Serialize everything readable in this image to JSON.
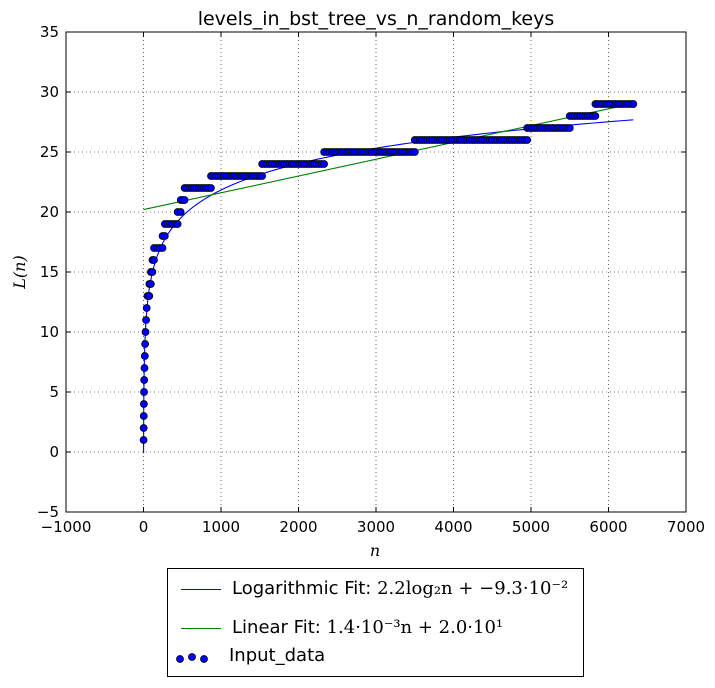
{
  "chart_data": {
    "type": "scatter",
    "title": "levels_in_bst_tree_vs_n_random_keys",
    "xlabel": "n",
    "ylabel": "L(n)",
    "xlim": [
      -1000,
      7000
    ],
    "ylim": [
      -5,
      35
    ],
    "xticks": [
      "−1000",
      "0",
      "1000",
      "2000",
      "3000",
      "4000",
      "5000",
      "6000",
      "7000"
    ],
    "yticks": [
      "−5",
      "0",
      "5",
      "10",
      "15",
      "20",
      "25",
      "30",
      "35"
    ],
    "grid": true,
    "legend_placement": "below",
    "series": [
      {
        "name": "Input_data",
        "kind": "scatter",
        "color": "#0000ff",
        "edge_color": "#000000",
        "segments": [
          {
            "y": 1,
            "x_start": 1,
            "x_end": 1
          },
          {
            "y": 2,
            "x_start": 2,
            "x_end": 2
          },
          {
            "y": 3,
            "x_start": 3,
            "x_end": 4
          },
          {
            "y": 4,
            "x_start": 5,
            "x_end": 6
          },
          {
            "y": 5,
            "x_start": 7,
            "x_end": 8
          },
          {
            "y": 6,
            "x_start": 9,
            "x_end": 12
          },
          {
            "y": 7,
            "x_start": 13,
            "x_end": 16
          },
          {
            "y": 8,
            "x_start": 17,
            "x_end": 20
          },
          {
            "y": 9,
            "x_start": 21,
            "x_end": 25
          },
          {
            "y": 10,
            "x_start": 26,
            "x_end": 32
          },
          {
            "y": 11,
            "x_start": 33,
            "x_end": 40
          },
          {
            "y": 12,
            "x_start": 41,
            "x_end": 50
          },
          {
            "y": 13,
            "x_start": 51,
            "x_end": 75
          },
          {
            "y": 14,
            "x_start": 76,
            "x_end": 95
          },
          {
            "y": 15,
            "x_start": 96,
            "x_end": 115
          },
          {
            "y": 16,
            "x_start": 116,
            "x_end": 135
          },
          {
            "y": 17,
            "x_start": 136,
            "x_end": 245
          },
          {
            "y": 18,
            "x_start": 246,
            "x_end": 275
          },
          {
            "y": 19,
            "x_start": 276,
            "x_end": 440
          },
          {
            "y": 20,
            "x_start": 441,
            "x_end": 480
          },
          {
            "y": 21,
            "x_start": 481,
            "x_end": 530
          },
          {
            "y": 22,
            "x_start": 531,
            "x_end": 870
          },
          {
            "y": 23,
            "x_start": 871,
            "x_end": 1530
          },
          {
            "y": 24,
            "x_start": 1531,
            "x_end": 2330
          },
          {
            "y": 25,
            "x_start": 2331,
            "x_end": 3500
          },
          {
            "y": 26,
            "x_start": 3501,
            "x_end": 4950
          },
          {
            "y": 27,
            "x_start": 4951,
            "x_end": 5500
          },
          {
            "y": 28,
            "x_start": 5501,
            "x_end": 5830
          },
          {
            "y": 29,
            "x_start": 5831,
            "x_end": 6320
          }
        ]
      },
      {
        "name": "Logarithmic Fit",
        "kind": "line",
        "color": "#0000ff",
        "formula_text": "2.2log₂n + −9.3·10⁻²",
        "a": 2.2,
        "b": -0.093,
        "x_range": [
          1,
          6320
        ]
      },
      {
        "name": "Linear Fit",
        "kind": "line",
        "color": "#008000",
        "formula_text": "1.4·10⁻³n + 2.0·10¹",
        "slope": 0.0014,
        "intercept": 20.2,
        "x_range": [
          1,
          6320
        ]
      }
    ]
  },
  "legend": {
    "log_label": "Logarithmic Fit: ",
    "log_formula": "2.2log₂n + −9.3·10⁻²",
    "lin_label": "Linear Fit: ",
    "lin_formula": "1.4·10⁻³n + 2.0·10¹",
    "data_label": "Input_data"
  }
}
